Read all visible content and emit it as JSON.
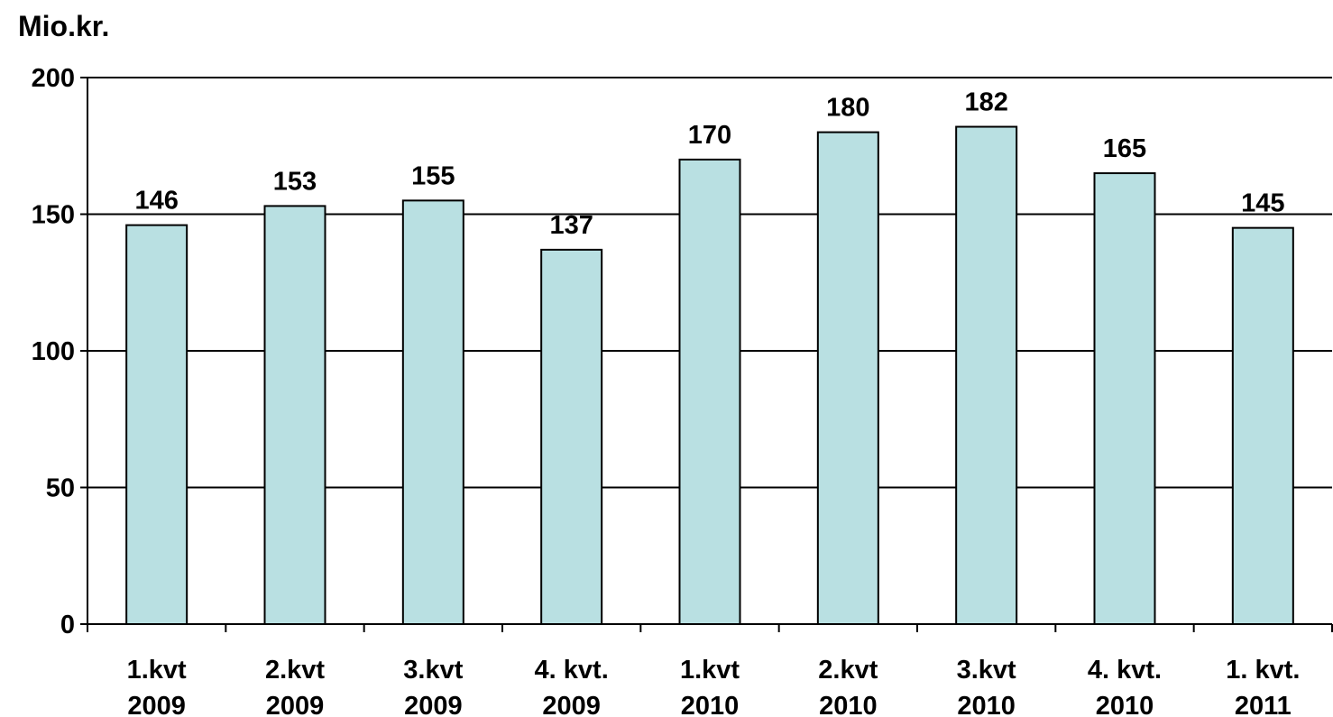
{
  "colors": {
    "bar_fill": "#b9e0e2",
    "bar_stroke": "#000000",
    "grid": "#000000",
    "text": "#000000"
  },
  "chart_data": {
    "type": "bar",
    "title": "",
    "xlabel": "",
    "ylabel": "Mio.kr.",
    "ylim": [
      0,
      200
    ],
    "yticks": [
      0,
      50,
      100,
      150,
      200
    ],
    "grid": true,
    "categories": [
      [
        "1.kvt",
        "2009"
      ],
      [
        "2.kvt",
        "2009"
      ],
      [
        "3.kvt",
        "2009"
      ],
      [
        "4. kvt.",
        "2009"
      ],
      [
        "1.kvt",
        "2010"
      ],
      [
        "2.kvt",
        "2010"
      ],
      [
        "3.kvt",
        "2010"
      ],
      [
        "4. kvt.",
        "2010"
      ],
      [
        "1. kvt.",
        "2011"
      ]
    ],
    "values": [
      146,
      153,
      155,
      137,
      170,
      180,
      182,
      165,
      145
    ],
    "data_labels": [
      "146",
      "153",
      "155",
      "137",
      "170",
      "180",
      "182",
      "165",
      "145"
    ]
  }
}
